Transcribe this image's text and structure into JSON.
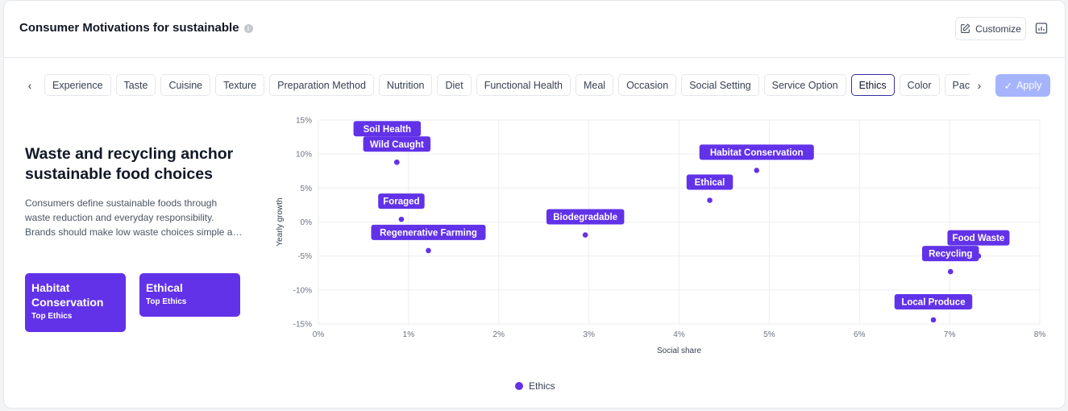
{
  "header": {
    "title": "Consumer Motivations for sustainable",
    "customize_label": "Customize"
  },
  "tabs": [
    {
      "label": "Experience"
    },
    {
      "label": "Taste"
    },
    {
      "label": "Cuisine"
    },
    {
      "label": "Texture"
    },
    {
      "label": "Preparation Method"
    },
    {
      "label": "Nutrition"
    },
    {
      "label": "Diet"
    },
    {
      "label": "Functional Health"
    },
    {
      "label": "Meal"
    },
    {
      "label": "Occasion"
    },
    {
      "label": "Social Setting"
    },
    {
      "label": "Service Option"
    },
    {
      "label": "Ethics",
      "active": true
    },
    {
      "label": "Color"
    },
    {
      "label": "Packaging"
    }
  ],
  "apply_label": "Apply",
  "insight": {
    "headline": "Waste and recycling anchor sustainable food choices",
    "description": "Consumers define sustainable foods through waste reduction and everyday responsibility. Brands should make low waste choices simple a…",
    "badges": [
      {
        "title": "Habitat Conservation",
        "subtitle": "Top Ethics"
      },
      {
        "title": "Ethical",
        "subtitle": "Top Ethics"
      }
    ]
  },
  "colors": {
    "accent": "#6232e8",
    "apply_disabled": "#a5b4fc",
    "grid": "#eceef1"
  },
  "chart_data": {
    "type": "scatter",
    "xlabel": "Social share",
    "ylabel": "Yearly growth",
    "xlim": [
      0,
      8
    ],
    "ylim": [
      -15,
      15
    ],
    "x_ticks": [
      "0%",
      "1%",
      "2%",
      "3%",
      "4%",
      "5%",
      "6%",
      "7%",
      "8%"
    ],
    "y_ticks": [
      "15%",
      "10%",
      "5%",
      "0%",
      "-5%",
      "-10%",
      "-15%"
    ],
    "grid": true,
    "legend": "bottom",
    "series": [
      {
        "name": "Ethics",
        "points": [
          {
            "label": "Soil Health",
            "x": 0.87,
            "y": 8.8
          },
          {
            "label": "Wild Caught",
            "x": 0.87,
            "y": 8.8
          },
          {
            "label": "Foraged",
            "x": 0.92,
            "y": 0.4
          },
          {
            "label": "Regenerative Farming",
            "x": 1.22,
            "y": -4.2
          },
          {
            "label": "Biodegradable",
            "x": 2.96,
            "y": -1.9
          },
          {
            "label": "Ethical",
            "x": 4.34,
            "y": 3.2
          },
          {
            "label": "Habitat Conservation",
            "x": 4.86,
            "y": 7.6
          },
          {
            "label": "Food Waste",
            "x": 7.32,
            "y": -5.0
          },
          {
            "label": "Recycling",
            "x": 7.01,
            "y": -7.3
          },
          {
            "label": "Local Produce",
            "x": 6.82,
            "y": -14.4
          }
        ]
      }
    ]
  }
}
